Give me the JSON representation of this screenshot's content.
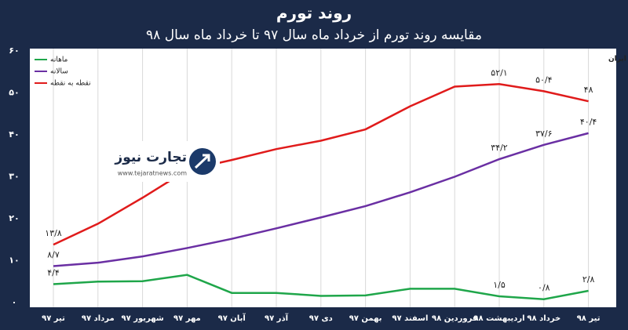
{
  "chart_data": {
    "type": "line",
    "title": "روند تورم",
    "subtitle": "مقایسه روند تورم از خرداد ماه سال ۹۷ تا خرداد ماه سال ۹۸",
    "source": "منبع: مرکز آمار ایران",
    "watermark": {
      "name": "تجارت نیوز",
      "url": "www.tejaratnews.com"
    },
    "categories": [
      "تیر ۹۷",
      "مرداد ۹۷",
      "شهریور ۹۷",
      "مهر ۹۷",
      "آبان ۹۷",
      "آذر ۹۷",
      "دی ۹۷",
      "بهمن ۹۷",
      "اسفند ۹۷",
      "فروردین ۹۸",
      "اردیبهشت ۹۸",
      "خرداد ۹۸",
      "تیر ۹۸"
    ],
    "series": [
      {
        "name": "ماهانه",
        "color": "#1fa64a",
        "values": [
          4.4,
          5.0,
          5.1,
          6.6,
          2.3,
          2.3,
          1.6,
          1.7,
          3.3,
          3.3,
          1.5,
          0.8,
          2.8
        ],
        "value_labels": [
          "۴/۴",
          null,
          null,
          null,
          null,
          null,
          null,
          null,
          null,
          null,
          "۱/۵",
          "۰/۸",
          "۲/۸"
        ]
      },
      {
        "name": "سالانه",
        "color": "#6a2fa3",
        "values": [
          8.7,
          9.5,
          11.0,
          13.0,
          15.2,
          17.7,
          20.3,
          23.0,
          26.3,
          30.0,
          34.2,
          37.6,
          40.4
        ],
        "value_labels": [
          "۸/۷",
          null,
          null,
          null,
          null,
          null,
          null,
          null,
          null,
          null,
          "۳۴/۲",
          "۳۷/۶",
          "۴۰/۴"
        ]
      },
      {
        "name": "نقطه به نقطه",
        "color": "#e01b1b",
        "values": [
          13.8,
          18.8,
          25.0,
          31.6,
          34.0,
          36.6,
          38.6,
          41.3,
          46.8,
          51.5,
          52.1,
          50.4,
          48.0
        ],
        "value_labels": [
          "۱۳/۸",
          null,
          null,
          null,
          null,
          null,
          null,
          null,
          null,
          null,
          "۵۲/۱",
          "۵۰/۴",
          "۴۸"
        ]
      }
    ],
    "ylim": [
      0,
      60
    ],
    "yticks": [
      {
        "value": 0,
        "label": "۰"
      },
      {
        "value": 10,
        "label": "۱۰"
      },
      {
        "value": 20,
        "label": "۲۰"
      },
      {
        "value": 30,
        "label": "۳۰"
      },
      {
        "value": 40,
        "label": "۴۰"
      },
      {
        "value": 50,
        "label": "۵۰"
      },
      {
        "value": 60,
        "label": "۶۰"
      }
    ],
    "grid": "vertical",
    "legend": "top-left"
  }
}
